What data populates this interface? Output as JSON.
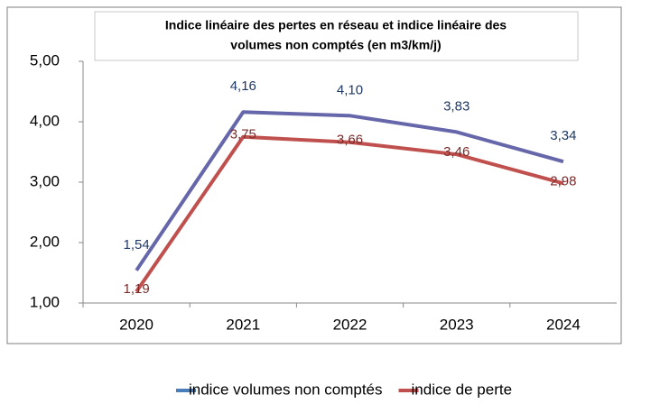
{
  "chart_data": {
    "type": "line",
    "title": "Indice linéaire des pertes en réseau et indice linéaire des",
    "subtitle": "volumes non comptés (en m3/km/j)",
    "categories": [
      "2020",
      "2021",
      "2022",
      "2023",
      "2024"
    ],
    "series": [
      {
        "name": "indice volumes non comptés",
        "color": "#6666aa",
        "legend_color": "#4a7ebb",
        "label_color": "#1f3864",
        "values": [
          1.54,
          4.16,
          4.1,
          3.83,
          3.34
        ],
        "value_labels": [
          "1,54",
          "4,16",
          "4,10",
          "3,83",
          "3,34"
        ]
      },
      {
        "name": "indice de perte",
        "color": "#c0504d",
        "legend_color": "#c0504d",
        "label_color": "#7b2c2c",
        "values": [
          1.19,
          3.75,
          3.66,
          3.46,
          2.98
        ],
        "value_labels": [
          "1,19",
          "3,75",
          "3,66",
          "3,46",
          "2,98"
        ]
      }
    ],
    "ylim": [
      1,
      5
    ],
    "yticks": [
      {
        "value": 1,
        "label": "1,00"
      },
      {
        "value": 2,
        "label": "2,00"
      },
      {
        "value": 3,
        "label": "3,00"
      },
      {
        "value": 4,
        "label": "4,00"
      },
      {
        "value": 5,
        "label": "5,00"
      }
    ],
    "grid": false
  }
}
